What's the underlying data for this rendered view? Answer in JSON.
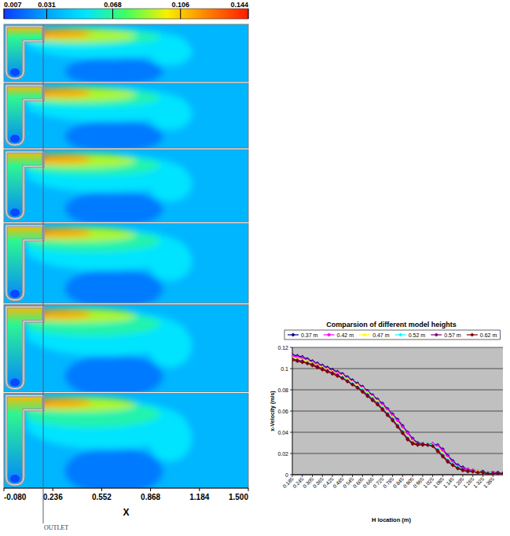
{
  "chart_data": [
    {
      "type": "contour",
      "panels": 6,
      "xlabel": "X",
      "xlim": [
        -0.08,
        1.5
      ],
      "xticks": [
        {
          "value": -0.08,
          "label": "-0.080"
        },
        0.236,
        0.552,
        0.868,
        1.184,
        {
          "value": 1.5,
          "label": "1.500"
        }
      ],
      "colorbar_lim": [
        0.007,
        0.144
      ],
      "colorbar_ticks": [
        0.007,
        0.031,
        0.068,
        0.106,
        0.144
      ],
      "colors": [
        "#0a3cff",
        "#00a0ff",
        "#00e5ff",
        "#40ff60",
        "#f8f000",
        "#ff8000",
        "#ff1a00"
      ],
      "annotations": [
        {
          "text": "OUTLET",
          "x": 0.174
        }
      ]
    },
    {
      "type": "line",
      "title": "Comparsion of different model heights",
      "xlabel": "H location (m)",
      "ylabel": "x-Velocity (m/s)",
      "x": [
        0.185,
        0.215,
        0.245,
        0.275,
        0.305,
        0.335,
        0.365,
        0.395,
        0.425,
        0.455,
        0.485,
        0.515,
        0.545,
        0.575,
        0.605,
        0.635,
        0.665,
        0.695,
        0.725,
        0.755,
        0.785,
        0.815,
        0.845,
        0.875,
        0.905,
        0.935,
        0.965,
        0.995,
        1.025,
        1.055,
        1.085,
        1.115,
        1.145,
        1.175,
        1.205,
        1.235,
        1.265,
        1.295,
        1.325,
        1.355,
        1.385,
        1.415,
        1.445
      ],
      "xlim": [
        0.185,
        1.445
      ],
      "xticks": [
        0.185,
        0.245,
        0.305,
        0.365,
        0.425,
        0.485,
        0.545,
        0.605,
        0.665,
        0.725,
        0.785,
        0.845,
        0.905,
        0.965,
        1.025,
        1.085,
        1.145,
        1.205,
        1.265,
        1.325,
        1.385
      ],
      "ylim": [
        0,
        0.12
      ],
      "yticks": [
        0,
        0.02,
        0.04,
        0.06,
        0.08,
        0.1,
        0.12
      ],
      "grid": true,
      "legend": "top",
      "marker": "diamond",
      "series": [
        {
          "name": "0.37 m",
          "color": "#000080",
          "values": [
            0.113,
            0.112,
            0.111,
            0.109,
            0.107,
            0.105,
            0.103,
            0.101,
            0.099,
            0.097,
            0.095,
            0.092,
            0.089,
            0.086,
            0.083,
            0.079,
            0.075,
            0.071,
            0.067,
            0.062,
            0.057,
            0.052,
            0.046,
            0.04,
            0.034,
            0.03,
            0.029,
            0.029,
            0.029,
            0.028,
            0.024,
            0.018,
            0.013,
            0.009,
            0.007,
            0.005,
            0.004,
            0.003,
            0.003,
            0.002,
            0.002,
            0.002,
            0.001
          ]
        },
        {
          "name": "0.42 m",
          "color": "#ff00ff",
          "values": [
            0.112,
            0.111,
            0.11,
            0.108,
            0.106,
            0.104,
            0.102,
            0.1,
            0.098,
            0.096,
            0.094,
            0.091,
            0.088,
            0.085,
            0.082,
            0.078,
            0.074,
            0.07,
            0.066,
            0.061,
            0.056,
            0.051,
            0.045,
            0.039,
            0.033,
            0.029,
            0.029,
            0.029,
            0.029,
            0.027,
            0.023,
            0.017,
            0.012,
            0.008,
            0.006,
            0.005,
            0.004,
            0.003,
            0.002,
            0.002,
            0.002,
            0.001,
            0.001
          ]
        },
        {
          "name": "0.47 m",
          "color": "#ffff00",
          "values": [
            0.11,
            0.109,
            0.108,
            0.107,
            0.105,
            0.103,
            0.101,
            0.099,
            0.097,
            0.095,
            0.093,
            0.09,
            0.087,
            0.084,
            0.081,
            0.077,
            0.073,
            0.069,
            0.064,
            0.059,
            0.054,
            0.048,
            0.042,
            0.036,
            0.031,
            0.029,
            0.029,
            0.029,
            0.028,
            0.025,
            0.02,
            0.015,
            0.01,
            0.007,
            0.005,
            0.004,
            0.003,
            0.003,
            0.002,
            0.002,
            0.001,
            0.001,
            0.001
          ]
        },
        {
          "name": "0.52 m",
          "color": "#00ffff",
          "values": [
            0.109,
            0.108,
            0.107,
            0.106,
            0.104,
            0.102,
            0.1,
            0.098,
            0.096,
            0.094,
            0.092,
            0.089,
            0.086,
            0.083,
            0.08,
            0.076,
            0.072,
            0.068,
            0.063,
            0.058,
            0.053,
            0.047,
            0.041,
            0.035,
            0.03,
            0.029,
            0.029,
            0.029,
            0.028,
            0.024,
            0.019,
            0.014,
            0.01,
            0.007,
            0.005,
            0.004,
            0.003,
            0.002,
            0.002,
            0.002,
            0.001,
            0.001,
            0.001
          ]
        },
        {
          "name": "0.57 m",
          "color": "#800080",
          "values": [
            0.109,
            0.108,
            0.107,
            0.105,
            0.104,
            0.102,
            0.1,
            0.098,
            0.096,
            0.094,
            0.091,
            0.088,
            0.085,
            0.082,
            0.079,
            0.075,
            0.071,
            0.067,
            0.062,
            0.057,
            0.052,
            0.046,
            0.04,
            0.034,
            0.03,
            0.029,
            0.029,
            0.028,
            0.027,
            0.023,
            0.018,
            0.013,
            0.009,
            0.006,
            0.005,
            0.004,
            0.003,
            0.002,
            0.002,
            0.001,
            0.001,
            0.001,
            0.001
          ]
        },
        {
          "name": "0.62 m",
          "color": "#800000",
          "values": [
            0.108,
            0.107,
            0.106,
            0.105,
            0.103,
            0.101,
            0.099,
            0.097,
            0.095,
            0.093,
            0.091,
            0.088,
            0.085,
            0.082,
            0.078,
            0.074,
            0.07,
            0.066,
            0.061,
            0.056,
            0.051,
            0.045,
            0.039,
            0.033,
            0.029,
            0.028,
            0.028,
            0.028,
            0.027,
            0.022,
            0.017,
            0.012,
            0.009,
            0.006,
            0.004,
            0.003,
            0.003,
            0.002,
            0.002,
            0.001,
            0.001,
            0.001,
            0.001
          ]
        }
      ]
    }
  ]
}
